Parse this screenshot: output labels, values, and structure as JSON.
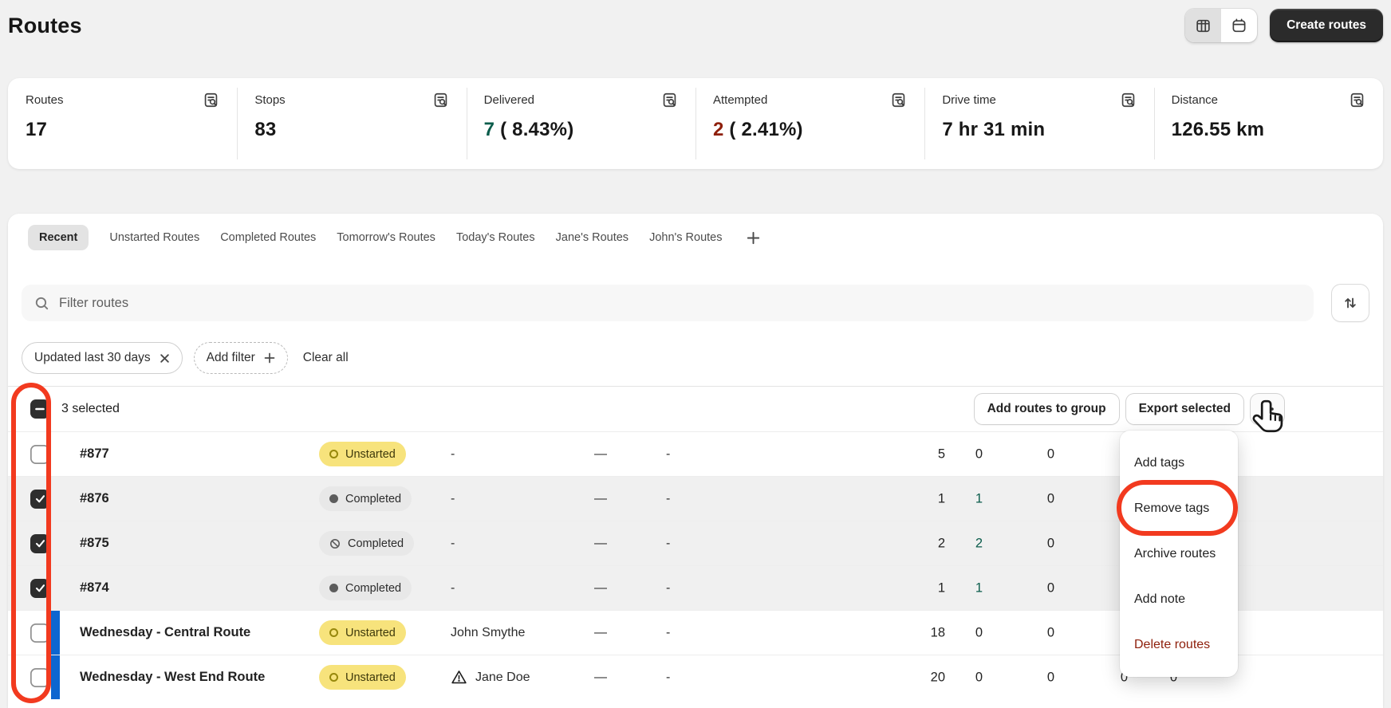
{
  "page": {
    "title": "Routes"
  },
  "header": {
    "create_label": "Create routes",
    "view_toggle": [
      {
        "icon": "table-view-icon",
        "active": true
      },
      {
        "icon": "calendar-view-icon",
        "active": false
      }
    ]
  },
  "stats": [
    {
      "label": "Routes",
      "icon": "view-report-icon",
      "value": "17"
    },
    {
      "label": "Stops",
      "icon": "view-report-icon",
      "value": "83"
    },
    {
      "label": "Delivered",
      "icon": "view-report-icon",
      "highlight": "7",
      "highlight_color": "success",
      "rest": " ( 8.43%)"
    },
    {
      "label": "Attempted",
      "icon": "view-report-icon",
      "highlight": "2",
      "highlight_color": "critical",
      "rest": " ( 2.41%)"
    },
    {
      "label": "Drive time",
      "icon": "view-report-icon",
      "value": "7 hr 31 min"
    },
    {
      "label": "Distance",
      "icon": "view-report-icon",
      "value": "126.55 km"
    }
  ],
  "tabs": {
    "items": [
      "Recent",
      "Unstarted Routes",
      "Completed Routes",
      "Tomorrow's Routes",
      "Today's Routes",
      "Jane's Routes",
      "John's Routes"
    ],
    "selected_index": 0,
    "add_icon": "plus-icon"
  },
  "search": {
    "placeholder": "Filter routes",
    "icon": "search-icon",
    "sort_icon": "sort-arrows-icon"
  },
  "filters": {
    "applied": {
      "label": "Updated last 30 days",
      "remove_icon": "x-icon"
    },
    "add_label": "Add filter",
    "clear_label": "Clear all"
  },
  "bulk": {
    "selected_text": "3 selected",
    "select_all_state": "indeterminate",
    "group_label": "Add routes to group",
    "export_label": "Export selected",
    "more_icon": "horizontal-dots-icon"
  },
  "menu": {
    "items": [
      {
        "label": "Add tags"
      },
      {
        "label": "Remove tags",
        "annotated": true
      },
      {
        "label": "Archive routes"
      },
      {
        "label": "Add note"
      },
      {
        "label": "Delete routes",
        "destructive": true
      }
    ]
  },
  "table": {
    "rows": [
      {
        "name": "#877",
        "checked": false,
        "color_bar": false,
        "status": {
          "label": "Unstarted",
          "type": "unstarted"
        },
        "driver": "-",
        "driver_warning": false,
        "dash_a": "—",
        "dash_b": "-",
        "nums": [
          {
            "v": "5"
          },
          {
            "v": "0"
          },
          {
            "v": "0"
          }
        ]
      },
      {
        "name": "#876",
        "checked": true,
        "color_bar": false,
        "status": {
          "label": "Completed",
          "type": "completed"
        },
        "driver": "-",
        "driver_warning": false,
        "dash_a": "—",
        "dash_b": "-",
        "nums": [
          {
            "v": "1"
          },
          {
            "v": "1",
            "green": true
          },
          {
            "v": "0"
          }
        ]
      },
      {
        "name": "#875",
        "checked": true,
        "color_bar": false,
        "status": {
          "label": "Completed",
          "type": "completed-disabled"
        },
        "driver": "-",
        "driver_warning": false,
        "dash_a": "—",
        "dash_b": "-",
        "nums": [
          {
            "v": "2"
          },
          {
            "v": "2",
            "green": true
          },
          {
            "v": "0"
          }
        ]
      },
      {
        "name": "#874",
        "checked": true,
        "color_bar": false,
        "status": {
          "label": "Completed",
          "type": "completed"
        },
        "driver": "-",
        "driver_warning": false,
        "dash_a": "—",
        "dash_b": "-",
        "nums": [
          {
            "v": "1"
          },
          {
            "v": "1",
            "green": true
          },
          {
            "v": "0"
          }
        ]
      },
      {
        "name": "Wednesday - Central Route",
        "checked": false,
        "color_bar": true,
        "status": {
          "label": "Unstarted",
          "type": "unstarted"
        },
        "driver": "John Smythe",
        "driver_warning": false,
        "dash_a": "—",
        "dash_b": "-",
        "nums": [
          {
            "v": "18"
          },
          {
            "v": "0"
          },
          {
            "v": "0"
          }
        ]
      },
      {
        "name": "Wednesday - West End Route",
        "checked": false,
        "color_bar": true,
        "status": {
          "label": "Unstarted",
          "type": "unstarted"
        },
        "driver": "Jane Doe",
        "driver_warning": true,
        "dash_a": "—",
        "dash_b": "-",
        "nums": [
          {
            "v": "20"
          },
          {
            "v": "0"
          },
          {
            "v": "0"
          },
          {
            "v": "0"
          },
          {
            "v": "0"
          }
        ]
      }
    ]
  },
  "annotations": {
    "checkbox_column_circled": true,
    "menu_item_circled": "Remove tags",
    "cursor": "pointing-hand-near-more-actions-button"
  },
  "colors": {
    "page-bg": "#f1f1f1",
    "success": "#0a5c4b",
    "critical": "#8e1f0b",
    "attn": "#f7e37c",
    "sel-bg": "#f0f0f0",
    "bar": "#0d66d0",
    "annot": "#f23a1f"
  }
}
